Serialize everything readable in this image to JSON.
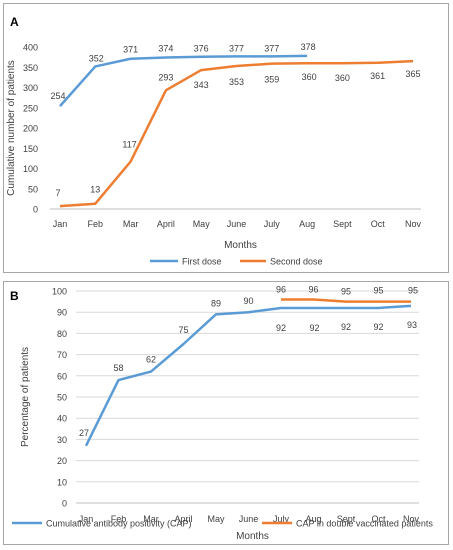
{
  "chart_data": [
    {
      "type": "line",
      "panel_label": "A",
      "categories": [
        "Jan",
        "Feb",
        "Mar",
        "April",
        "May",
        "June",
        "July",
        "Aug",
        "Sept",
        "Oct",
        "Nov"
      ],
      "series": [
        {
          "name": "First dose",
          "color": "#5b9bd5",
          "values": [
            254,
            352,
            371,
            374,
            376,
            377,
            377,
            378,
            null,
            null,
            null
          ]
        },
        {
          "name": "Second dose",
          "color": "#ed7d31",
          "values": [
            7,
            13,
            117,
            293,
            343,
            353,
            359,
            360,
            360,
            361,
            365
          ]
        }
      ],
      "xlabel": "Months",
      "ylabel": "Cumulative number of patients",
      "ylim": [
        0,
        400
      ],
      "yticks": [
        0,
        50,
        100,
        150,
        200,
        250,
        300,
        350,
        400
      ],
      "grid": false,
      "legend": "bottom"
    },
    {
      "type": "line",
      "panel_label": "B",
      "categories": [
        "Jan",
        "Feb",
        "Mar",
        "April",
        "May",
        "June",
        "July",
        "Aug",
        "Sept",
        "Oct",
        "Nov"
      ],
      "series": [
        {
          "name": "Cumulative antibody positivity (CAP)",
          "color": "#5b9bd5",
          "values": [
            27,
            58,
            62,
            75,
            89,
            90,
            92,
            92,
            92,
            92,
            93
          ]
        },
        {
          "name": "CAP in double vaccinated patients",
          "color": "#ed7d31",
          "values": [
            null,
            null,
            null,
            null,
            null,
            null,
            96,
            96,
            95,
            95,
            95
          ]
        }
      ],
      "xlabel": "Months",
      "ylabel": "Percentage of patients",
      "ylim": [
        0,
        100
      ],
      "yticks": [
        0,
        10,
        20,
        30,
        40,
        50,
        60,
        70,
        80,
        90,
        100
      ],
      "grid": true,
      "legend": "bottom"
    }
  ]
}
